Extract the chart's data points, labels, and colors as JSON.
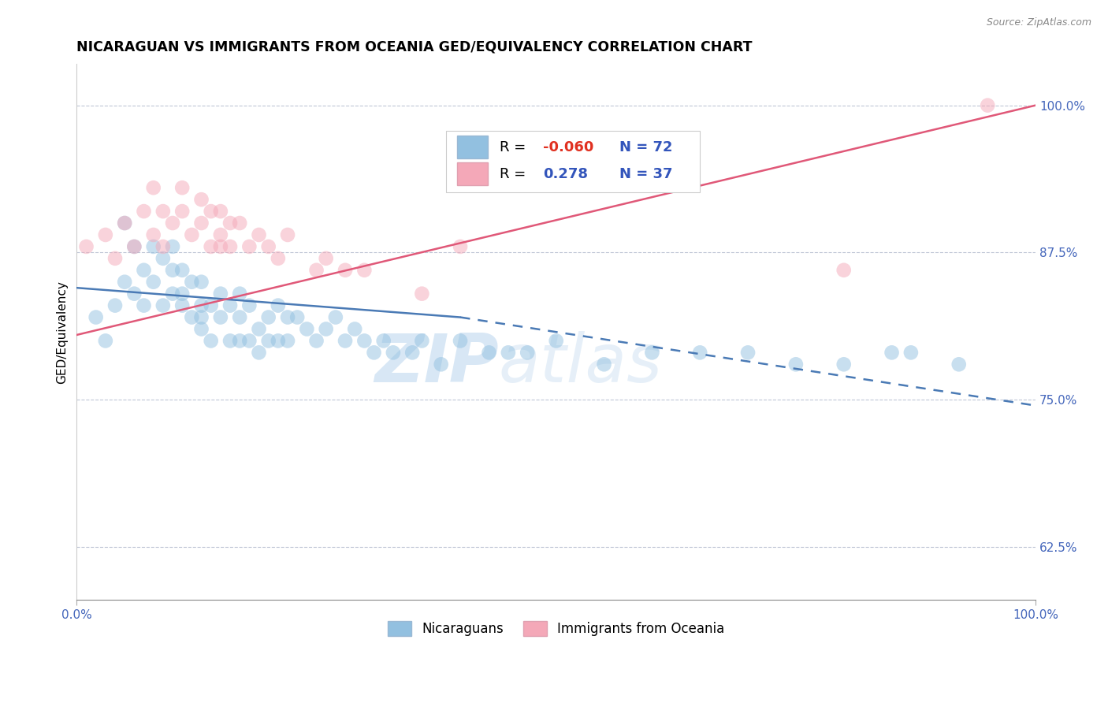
{
  "title": "NICARAGUAN VS IMMIGRANTS FROM OCEANIA GED/EQUIVALENCY CORRELATION CHART",
  "source": "Source: ZipAtlas.com",
  "ylabel": "GED/Equivalency",
  "xlim": [
    0.0,
    100.0
  ],
  "ylim": [
    58.0,
    103.5
  ],
  "yticks": [
    62.5,
    75.0,
    87.5,
    100.0
  ],
  "xticks": [
    0.0,
    100.0
  ],
  "xtick_labels": [
    "0.0%",
    "100.0%"
  ],
  "ytick_labels": [
    "62.5%",
    "75.0%",
    "87.5%",
    "100.0%"
  ],
  "legend_label_blue": "Nicaraguans",
  "legend_label_pink": "Immigrants from Oceania",
  "blue_color": "#92c0e0",
  "pink_color": "#f4a8b8",
  "blue_line_color": "#4a7ab5",
  "pink_line_color": "#e05878",
  "watermark_text": "ZIP",
  "watermark_text2": "atlas",
  "blue_scatter_x": [
    2,
    3,
    4,
    5,
    5,
    6,
    6,
    7,
    7,
    8,
    8,
    9,
    9,
    10,
    10,
    10,
    11,
    11,
    11,
    12,
    12,
    13,
    13,
    13,
    13,
    14,
    14,
    15,
    15,
    16,
    16,
    17,
    17,
    17,
    18,
    18,
    19,
    19,
    20,
    20,
    21,
    21,
    22,
    22,
    23,
    24,
    25,
    26,
    27,
    28,
    29,
    30,
    31,
    32,
    33,
    35,
    36,
    38,
    40,
    43,
    45,
    47,
    50,
    55,
    60,
    65,
    70,
    75,
    80,
    85,
    87,
    92
  ],
  "blue_scatter_y": [
    82,
    80,
    83,
    90,
    85,
    88,
    84,
    86,
    83,
    88,
    85,
    87,
    83,
    86,
    84,
    88,
    84,
    86,
    83,
    82,
    85,
    83,
    81,
    85,
    82,
    83,
    80,
    84,
    82,
    83,
    80,
    82,
    80,
    84,
    80,
    83,
    81,
    79,
    80,
    82,
    80,
    83,
    80,
    82,
    82,
    81,
    80,
    81,
    82,
    80,
    81,
    80,
    79,
    80,
    79,
    79,
    80,
    78,
    80,
    79,
    79,
    79,
    80,
    78,
    79,
    79,
    79,
    78,
    78,
    79,
    79,
    78
  ],
  "pink_scatter_x": [
    1,
    3,
    4,
    5,
    6,
    7,
    8,
    8,
    9,
    9,
    10,
    11,
    11,
    12,
    13,
    13,
    14,
    14,
    15,
    15,
    15,
    16,
    16,
    17,
    18,
    19,
    20,
    21,
    22,
    25,
    26,
    28,
    30,
    36,
    40,
    80,
    95
  ],
  "pink_scatter_y": [
    88,
    89,
    87,
    90,
    88,
    91,
    89,
    93,
    91,
    88,
    90,
    91,
    93,
    89,
    90,
    92,
    88,
    91,
    88,
    91,
    89,
    90,
    88,
    90,
    88,
    89,
    88,
    87,
    89,
    86,
    87,
    86,
    86,
    84,
    88,
    86,
    100
  ],
  "blue_solid_x0": 0,
  "blue_solid_x1": 40,
  "blue_solid_y0": 84.5,
  "blue_solid_y1": 82.0,
  "blue_dash_x0": 40,
  "blue_dash_x1": 100,
  "blue_dash_y0": 82.0,
  "blue_dash_y1": 74.5,
  "pink_line_x0": 0,
  "pink_line_x1": 100,
  "pink_line_y0": 80.5,
  "pink_line_y1": 100.0
}
